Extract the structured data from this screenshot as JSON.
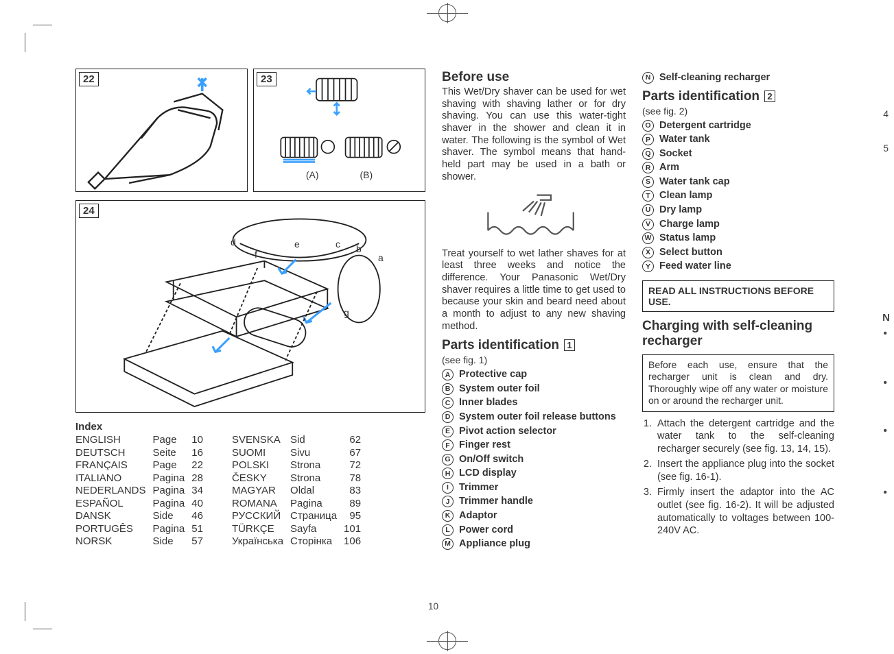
{
  "figures": {
    "fig22": "22",
    "fig23": "23",
    "fig24": "24",
    "fig23_a": "(A)",
    "fig23_b": "(B)",
    "fig24_letters": {
      "a": "a",
      "b": "b",
      "c": "c",
      "d": "d",
      "e": "e",
      "f": "f",
      "g": "g"
    }
  },
  "index": {
    "title": "Index",
    "left": [
      {
        "lang": "ENGLISH",
        "word": "Page",
        "num": "10"
      },
      {
        "lang": "DEUTSCH",
        "word": "Seite",
        "num": "16"
      },
      {
        "lang": "FRANÇAIS",
        "word": "Page",
        "num": "22"
      },
      {
        "lang": "ITALIANO",
        "word": "Pagina",
        "num": "28"
      },
      {
        "lang": "NEDERLANDS",
        "word": "Pagina",
        "num": "34"
      },
      {
        "lang": "ESPAÑOL",
        "word": "Pagina",
        "num": "40"
      },
      {
        "lang": "DANSK",
        "word": "Side",
        "num": "46"
      },
      {
        "lang": "PORTUGÊS",
        "word": "Pagina",
        "num": "51"
      },
      {
        "lang": "NORSK",
        "word": "Side",
        "num": "57"
      }
    ],
    "right": [
      {
        "lang": "SVENSKA",
        "word": "Sid",
        "num": "62"
      },
      {
        "lang": "SUOMI",
        "word": "Sivu",
        "num": "67"
      },
      {
        "lang": "POLSKI",
        "word": "Strona",
        "num": "72"
      },
      {
        "lang": "ČESKY",
        "word": "Strona",
        "num": "78"
      },
      {
        "lang": "MAGYAR",
        "word": "Oldal",
        "num": "83"
      },
      {
        "lang": "ROMANA",
        "word": "Pagina",
        "num": "89"
      },
      {
        "lang": "РУССКИЙ",
        "word": "Страница",
        "num": "95"
      },
      {
        "lang": "TÜRKÇE",
        "word": "Sayfa",
        "num": "101"
      },
      {
        "lang": "Українська",
        "word": "Сторінка",
        "num": "106"
      }
    ]
  },
  "col2": {
    "before_use_title": "Before use",
    "before_use_p1": "This Wet/Dry shaver can be used for wet shaving with shaving lather or for dry shaving. You can use this water-tight shaver in the shower and clean it in water. The following is the symbol of Wet shaver. The symbol means that hand-held part may be used in a bath or shower.",
    "before_use_p2": "Treat yourself to wet lather shaves for at least three weeks and notice the difference. Your Panasonic Wet/Dry shaver requires a little time to get used to because your skin and beard need about a month to adjust to any new shaving method.",
    "parts1_title": "Parts identification",
    "parts1_num": "1",
    "parts1_see": "(see fig. 1)",
    "parts1": [
      {
        "k": "A",
        "t": "Protective cap"
      },
      {
        "k": "B",
        "t": "System outer foil"
      },
      {
        "k": "C",
        "t": "Inner blades"
      },
      {
        "k": "D",
        "t": "System outer foil release buttons"
      },
      {
        "k": "E",
        "t": "Pivot action selector"
      },
      {
        "k": "F",
        "t": "Finger rest"
      },
      {
        "k": "G",
        "t": "On/Off switch"
      },
      {
        "k": "H",
        "t": "LCD display"
      },
      {
        "k": "I",
        "t": "Trimmer"
      },
      {
        "k": "J",
        "t": "Trimmer handle"
      },
      {
        "k": "K",
        "t": "Adaptor"
      },
      {
        "k": "L",
        "t": "Power cord"
      },
      {
        "k": "M",
        "t": "Appliance plug"
      }
    ]
  },
  "col3": {
    "part_n": {
      "k": "N",
      "t": "Self-cleaning recharger"
    },
    "parts2_title": "Parts identification",
    "parts2_num": "2",
    "parts2_see": "(see fig. 2)",
    "parts2": [
      {
        "k": "O",
        "t": "Detergent cartridge"
      },
      {
        "k": "P",
        "t": "Water tank"
      },
      {
        "k": "Q",
        "t": "Socket"
      },
      {
        "k": "R",
        "t": "Arm"
      },
      {
        "k": "S",
        "t": "Water tank cap"
      },
      {
        "k": "T",
        "t": "Clean lamp"
      },
      {
        "k": "U",
        "t": "Dry lamp"
      },
      {
        "k": "V",
        "t": "Charge lamp"
      },
      {
        "k": "W",
        "t": "Status lamp"
      },
      {
        "k": "X",
        "t": "Select button"
      },
      {
        "k": "Y",
        "t": "Feed water line"
      }
    ],
    "warn": "READ ALL INSTRUCTIONS BEFORE USE.",
    "charging_title": "Charging with self-cleaning recharger",
    "note": "Before each use, ensure that the recharger unit is clean and dry. Thoroughly wipe off any water or moisture on or around the recharger unit.",
    "steps": [
      "Attach the detergent cartridge and the water tank to the self-cleaning recharger securely (see fig. 13, 14, 15).",
      "Insert the appliance plug into the socket (see fig. 16-1).",
      "Firmly insert the adaptor into the AC outlet (see fig. 16-2).\nIt will be adjusted automatically to voltages between 100-240V AC."
    ]
  },
  "folio": "10",
  "edge": {
    "n": "N",
    "d1": "4",
    "d2": "5"
  }
}
